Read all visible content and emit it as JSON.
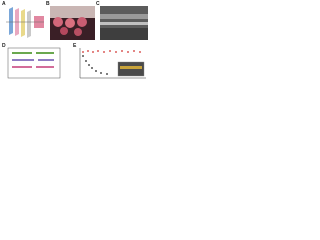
{
  "figure": {
    "panels": [
      {
        "label": "A"
      },
      {
        "label": "B"
      },
      {
        "label": "C"
      },
      {
        "label": "D"
      },
      {
        "label": "E"
      }
    ]
  }
}
